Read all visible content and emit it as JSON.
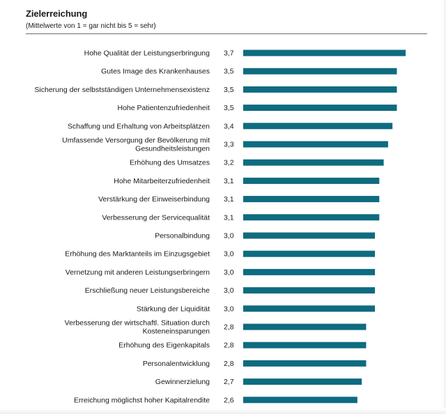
{
  "header": {
    "title": "Zielerreichung",
    "subtitle": "(Mittelwerte von 1 = gar nicht bis 5 = sehr)"
  },
  "colors": {
    "bar": "#0e6b80",
    "text": "#1a1a1a",
    "rule": "#6b6b6b"
  },
  "chart_data": {
    "type": "bar",
    "orientation": "horizontal",
    "title": "Zielerreichung",
    "subtitle": "(Mittelwerte von 1 = gar nicht bis 5 = sehr)",
    "xlim": [
      0,
      5
    ],
    "grid": false,
    "legend": "none",
    "categories": [
      [
        "Hohe Qualität der Leistungserbringung"
      ],
      [
        "Gutes Image des Krankenhauses"
      ],
      [
        "Sicherung der selbstständigen Unternehmensexistenz"
      ],
      [
        "Hohe Patientenzufriedenheit"
      ],
      [
        "Schaffung und Erhaltung von Arbeitsplätzen"
      ],
      [
        "Umfassende Versorgung der Bevölkerung mit",
        "Gesundheitsleistungen"
      ],
      [
        "Erhöhung des Umsatzes"
      ],
      [
        "Hohe Mitarbeiterzufriedenheit"
      ],
      [
        "Verstärkung der Einweiserbindung"
      ],
      [
        "Verbesserung der Servicequalität"
      ],
      [
        "Personalbindung"
      ],
      [
        "Erhöhung des Marktanteils im Einzugsgebiet"
      ],
      [
        "Vernetzung mit anderen Leistungserbringern"
      ],
      [
        "Erschließung neuer Leistungsbereiche"
      ],
      [
        "Stärkung der Liquidität"
      ],
      [
        "Verbesserung der wirtschaftl. Situation durch",
        "Kosteneinsparungen"
      ],
      [
        "Erhöhung des Eigenkapitals"
      ],
      [
        "Personalentwicklung"
      ],
      [
        "Gewinnerzielung"
      ],
      [
        "Erreichung möglichst hoher Kapitalrendite"
      ]
    ],
    "values": [
      3.7,
      3.5,
      3.5,
      3.5,
      3.4,
      3.3,
      3.2,
      3.1,
      3.1,
      3.1,
      3.0,
      3.0,
      3.0,
      3.0,
      3.0,
      2.8,
      2.8,
      2.8,
      2.7,
      2.6
    ],
    "value_labels": [
      "3,7",
      "3,5",
      "3,5",
      "3,5",
      "3,4",
      "3,3",
      "3,2",
      "3,1",
      "3,1",
      "3,1",
      "3,0",
      "3,0",
      "3,0",
      "3,0",
      "3,0",
      "2,8",
      "2,8",
      "2,8",
      "2,7",
      "2,6"
    ]
  }
}
